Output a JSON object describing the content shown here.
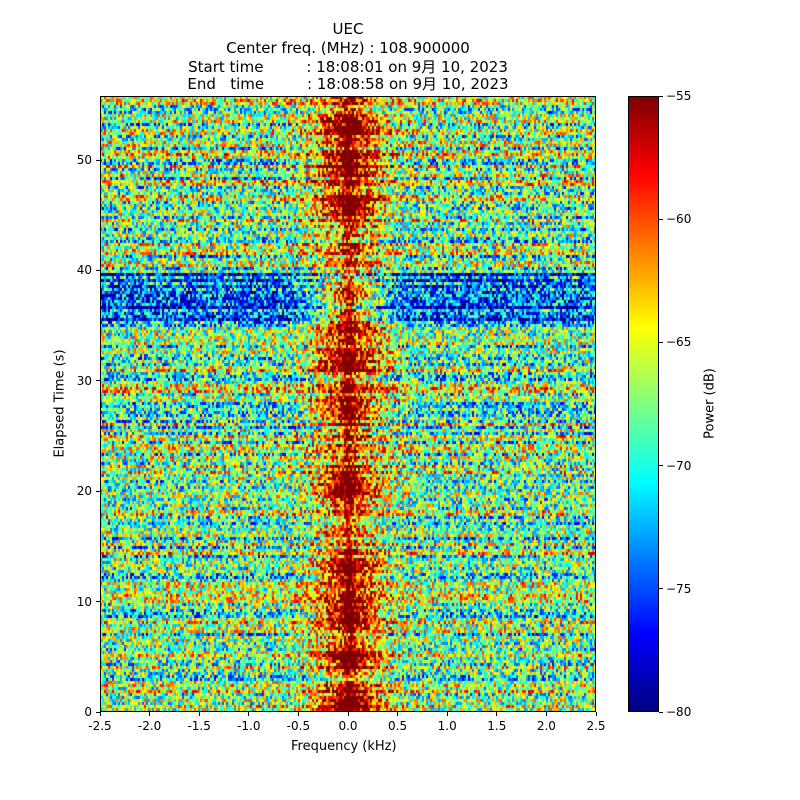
{
  "chart_data": {
    "type": "heatmap",
    "title_lines": [
      "UEC",
      "Center freq. (MHz) : 108.900000",
      "Start time         : 18:08:01 on 9月 10, 2023",
      "End   time         : 18:08:58 on 9月 10, 2023"
    ],
    "xlabel": "Frequency (kHz)",
    "ylabel": "Elapsed Time (s)",
    "xlim": [
      -2.5,
      2.5
    ],
    "ylim": [
      0,
      55.8
    ],
    "x_ticks": [
      "-2.5",
      "-2.0",
      "-1.5",
      "-1.0",
      "-0.5",
      "0.0",
      "0.5",
      "1.0",
      "1.5",
      "2.0",
      "2.5"
    ],
    "y_ticks": [
      "0",
      "10",
      "20",
      "30",
      "40",
      "50"
    ],
    "colorbar": {
      "label": "Power (dB)",
      "range": [
        -80,
        -55
      ],
      "ticks": [
        "−55",
        "−60",
        "−65",
        "−70",
        "−75",
        "−80"
      ],
      "colormap": "jet"
    },
    "description_strong_rows_s": [
      1,
      5,
      9,
      13,
      20.5,
      27.5,
      32,
      35.5,
      38,
      46,
      49.5,
      53
    ]
  }
}
